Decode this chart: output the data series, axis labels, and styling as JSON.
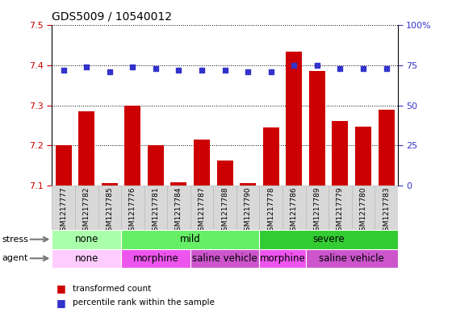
{
  "title": "GDS5009 / 10540012",
  "samples": [
    "GSM1217777",
    "GSM1217782",
    "GSM1217785",
    "GSM1217776",
    "GSM1217781",
    "GSM1217784",
    "GSM1217787",
    "GSM1217788",
    "GSM1217790",
    "GSM1217778",
    "GSM1217786",
    "GSM1217789",
    "GSM1217779",
    "GSM1217780",
    "GSM1217783"
  ],
  "transformed_count": [
    7.2,
    7.285,
    7.105,
    7.3,
    7.2,
    7.107,
    7.215,
    7.163,
    7.105,
    7.245,
    7.435,
    7.385,
    7.262,
    7.247,
    7.29
  ],
  "percentile_rank": [
    72,
    74,
    71,
    74,
    73,
    72,
    72,
    72,
    71,
    71,
    75,
    75,
    73,
    73,
    73
  ],
  "ylim_left": [
    7.1,
    7.5
  ],
  "ylim_right": [
    0,
    100
  ],
  "yticks_left": [
    7.1,
    7.2,
    7.3,
    7.4,
    7.5
  ],
  "yticks_right": [
    0,
    25,
    50,
    75,
    100
  ],
  "ytick_right_labels": [
    "0",
    "25",
    "50",
    "75",
    "100%"
  ],
  "bar_color": "#cc0000",
  "dot_color": "#3333cc",
  "stress_groups": [
    {
      "label": "none",
      "start": 0,
      "end": 3,
      "color": "#aaffaa"
    },
    {
      "label": "mild",
      "start": 3,
      "end": 9,
      "color": "#66ee66"
    },
    {
      "label": "severe",
      "start": 9,
      "end": 15,
      "color": "#33cc33"
    }
  ],
  "agent_groups": [
    {
      "label": "none",
      "start": 0,
      "end": 3,
      "color": "#ffccff"
    },
    {
      "label": "morphine",
      "start": 3,
      "end": 6,
      "color": "#ee55ee"
    },
    {
      "label": "saline vehicle",
      "start": 6,
      "end": 9,
      "color": "#cc55cc"
    },
    {
      "label": "morphine",
      "start": 9,
      "end": 11,
      "color": "#ee55ee"
    },
    {
      "label": "saline vehicle",
      "start": 11,
      "end": 15,
      "color": "#cc55cc"
    }
  ],
  "stress_label": "stress",
  "agent_label": "agent",
  "legend_bar_label": "transformed count",
  "legend_dot_label": "percentile rank within the sample",
  "tick_color_left": "#cc0000",
  "tick_color_right": "#3333cc",
  "sample_box_color": "#d8d8d8",
  "sample_box_edge_color": "#bbbbbb"
}
